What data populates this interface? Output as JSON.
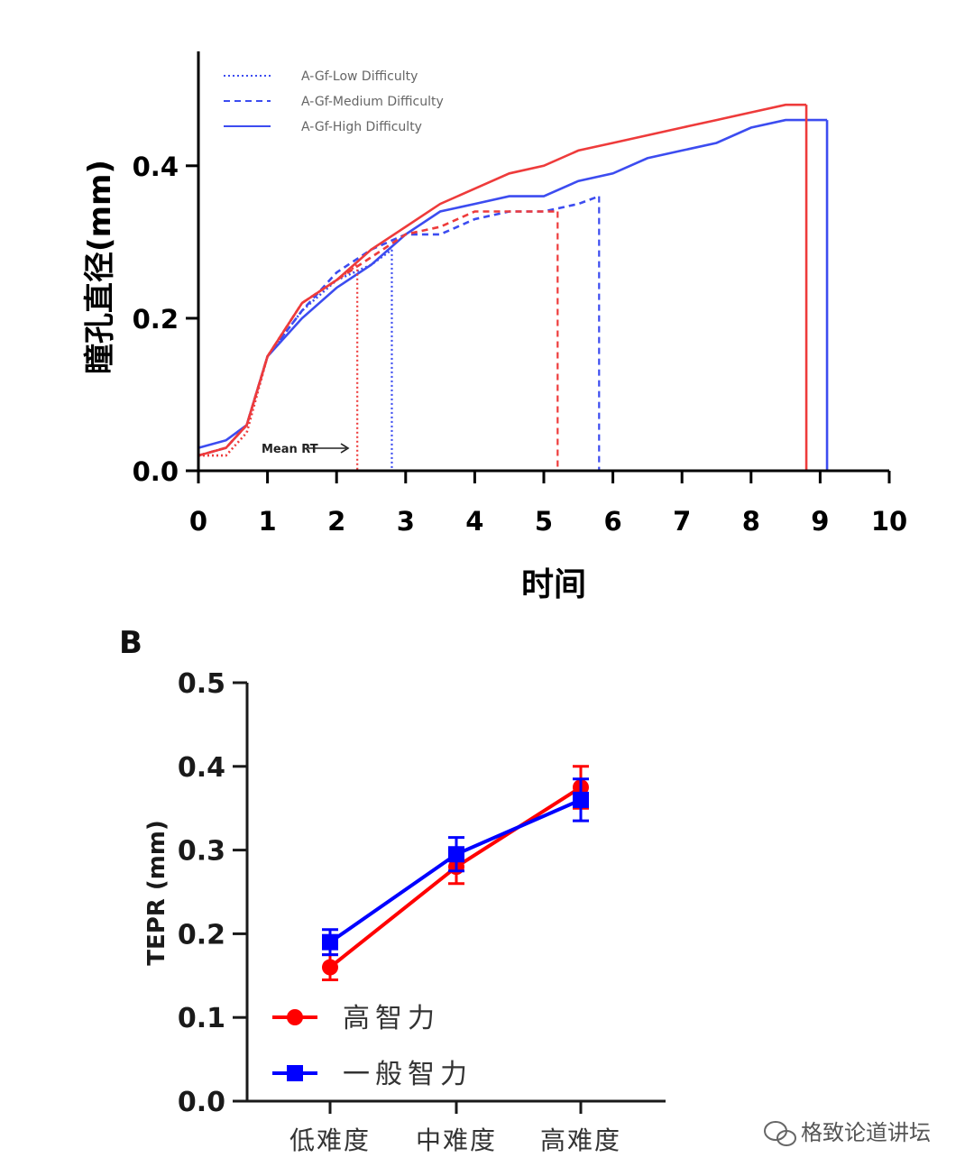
{
  "panel_b_label": "B",
  "watermark": "格致论道讲坛",
  "colors": {
    "red": "#ee3b3b",
    "blue": "#3c4cf0",
    "red_b": "#ff0000",
    "blue_b": "#0000ff"
  },
  "chart_data": [
    {
      "type": "line",
      "title": "",
      "xlabel": "时间",
      "ylabel": "瞳孔直径(mm)",
      "xlim": [
        0,
        10
      ],
      "ylim": [
        0,
        0.55
      ],
      "x_ticks": [
        "0",
        "1",
        "2",
        "3",
        "4",
        "5",
        "6",
        "7",
        "8",
        "9",
        "10"
      ],
      "y_ticks": [
        "0.0",
        "0.2",
        "0.4"
      ],
      "annotation": "Mean RT",
      "legend_position": "top-left",
      "series": [
        {
          "legend": "A-Gf-Low Difficulty",
          "color": "#3c4cf0",
          "style": "dotted",
          "x": [
            0,
            0.4,
            0.7,
            1.0,
            1.5,
            2.0,
            2.5,
            2.8
          ],
          "y": [
            0.02,
            0.03,
            0.06,
            0.15,
            0.21,
            0.25,
            0.27,
            0.29
          ],
          "end_x": 2.8
        },
        {
          "legend": "A-Gf-Medium Difficulty",
          "color": "#3c4cf0",
          "style": "dashed",
          "x": [
            0,
            0.4,
            0.7,
            1.0,
            1.5,
            2.0,
            2.5,
            3.0,
            3.5,
            4.0,
            4.5,
            5.0,
            5.5,
            5.8
          ],
          "y": [
            0.02,
            0.03,
            0.06,
            0.15,
            0.21,
            0.26,
            0.29,
            0.31,
            0.31,
            0.33,
            0.34,
            0.34,
            0.35,
            0.36
          ],
          "end_x": 5.8
        },
        {
          "legend": "A-Gf-High Difficulty",
          "color": "#3c4cf0",
          "style": "solid",
          "x": [
            0,
            0.4,
            0.7,
            1.0,
            1.5,
            2.0,
            2.5,
            3.0,
            3.5,
            4.0,
            4.5,
            5.0,
            5.5,
            6.0,
            6.5,
            7.0,
            7.5,
            8.0,
            8.5,
            9.1
          ],
          "y": [
            0.03,
            0.04,
            0.06,
            0.15,
            0.2,
            0.24,
            0.27,
            0.31,
            0.34,
            0.35,
            0.36,
            0.36,
            0.38,
            0.39,
            0.41,
            0.42,
            0.43,
            0.45,
            0.46,
            0.46
          ],
          "end_x": 9.1
        },
        {
          "legend": "",
          "color": "#ee3b3b",
          "style": "dotted",
          "x": [
            0,
            0.4,
            0.7,
            1.0,
            1.5,
            2.0,
            2.3
          ],
          "y": [
            0.02,
            0.02,
            0.05,
            0.15,
            0.22,
            0.25,
            0.27
          ],
          "end_x": 2.3
        },
        {
          "legend": "",
          "color": "#ee3b3b",
          "style": "dashed",
          "x": [
            0,
            0.4,
            0.7,
            1.0,
            1.5,
            2.0,
            2.5,
            3.0,
            3.5,
            4.0,
            4.5,
            5.2
          ],
          "y": [
            0.02,
            0.03,
            0.06,
            0.15,
            0.22,
            0.25,
            0.28,
            0.31,
            0.32,
            0.34,
            0.34,
            0.34
          ],
          "end_x": 5.2
        },
        {
          "legend": "",
          "color": "#ee3b3b",
          "style": "solid",
          "x": [
            0,
            0.4,
            0.7,
            1.0,
            1.5,
            2.0,
            2.5,
            3.0,
            3.5,
            4.0,
            4.5,
            5.0,
            5.5,
            6.0,
            6.5,
            7.0,
            7.5,
            8.0,
            8.5,
            8.8
          ],
          "y": [
            0.02,
            0.03,
            0.06,
            0.15,
            0.22,
            0.25,
            0.29,
            0.32,
            0.35,
            0.37,
            0.39,
            0.4,
            0.42,
            0.43,
            0.44,
            0.45,
            0.46,
            0.47,
            0.48,
            0.48
          ],
          "end_x": 8.8
        }
      ]
    },
    {
      "type": "line",
      "title": "",
      "xlabel": "",
      "ylabel": "TEPR (mm)",
      "categories": [
        "低难度",
        "中难度",
        "高难度"
      ],
      "ylim": [
        0,
        0.5
      ],
      "y_ticks": [
        "0.0",
        "0.1",
        "0.2",
        "0.3",
        "0.4",
        "0.5"
      ],
      "legend_position": "bottom-left",
      "series": [
        {
          "name": "高智力",
          "color": "#ff0000",
          "marker": "circle",
          "values": [
            0.16,
            0.28,
            0.375
          ],
          "errors": [
            0.015,
            0.02,
            0.025
          ]
        },
        {
          "name": "一般智力",
          "color": "#0000ff",
          "marker": "square",
          "values": [
            0.19,
            0.295,
            0.36
          ],
          "errors": [
            0.015,
            0.02,
            0.025
          ]
        }
      ]
    }
  ]
}
